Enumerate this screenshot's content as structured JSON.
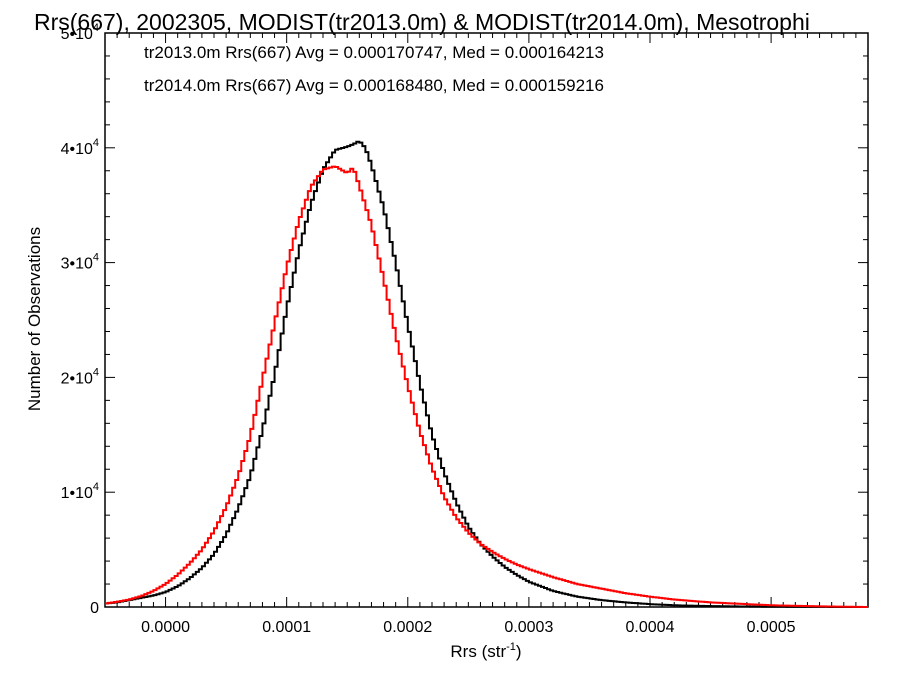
{
  "chart_data": {
    "type": "line",
    "title": "Rrs(667), 2002305, MODIST(tr2013.0m) & MODIST(tr2014.0m), Mesotrophi",
    "xlabel": "Rrs (str",
    "xlabel_sup": "-1",
    "xlabel_end": ")",
    "ylabel": "Number of Observations",
    "xlim": [
      -5e-05,
      0.00058
    ],
    "ylim": [
      0,
      50000
    ],
    "x_ticks": [
      0.0,
      0.0001,
      0.0002,
      0.0003,
      0.0004,
      0.0005
    ],
    "x_tick_labels": [
      "0.0000",
      "0.0001",
      "0.0002",
      "0.0003",
      "0.0004",
      "0.0005"
    ],
    "y_ticks": [
      0,
      10000,
      20000,
      30000,
      40000,
      50000
    ],
    "y_tick_labels": [
      {
        "base": "0",
        "exp": ""
      },
      {
        "base": "1•10",
        "exp": "4"
      },
      {
        "base": "2•10",
        "exp": "4"
      },
      {
        "base": "3•10",
        "exp": "4"
      },
      {
        "base": "4•10",
        "exp": "4"
      },
      {
        "base": "5•10",
        "exp": "4"
      }
    ],
    "legend": [
      {
        "text": "tr2013.0m Rrs(667) Avg = 0.000170747, Med = 0.000164213",
        "color": "#000000"
      },
      {
        "text": "tr2014.0m Rrs(667) Avg = 0.000168480, Med = 0.000159216",
        "color": "#ff0000"
      }
    ],
    "legend_position": "top-left",
    "grid": false,
    "series": [
      {
        "color": "#000000",
        "x": [
          -5e-05,
          -4e-05,
          -3e-05,
          -2e-05,
          -1e-05,
          0.0,
          1e-05,
          2e-05,
          3e-05,
          4e-05,
          5e-05,
          6e-05,
          7e-05,
          8e-05,
          9e-05,
          0.0001,
          0.00011,
          0.00012,
          0.00013,
          0.00014,
          0.00015,
          0.000155,
          0.00016,
          0.000165,
          0.00017,
          0.00018,
          0.00019,
          0.0002,
          0.00021,
          0.00022,
          0.00023,
          0.00024,
          0.00025,
          0.00026,
          0.00027,
          0.00028,
          0.00029,
          0.0003,
          0.00032,
          0.00034,
          0.00036,
          0.00038,
          0.0004,
          0.00042,
          0.00045,
          0.00048,
          0.0005,
          0.00053,
          0.00055,
          0.00058
        ],
        "y": [
          300,
          400,
          600,
          800,
          1000,
          1300,
          1800,
          2500,
          3400,
          4600,
          6300,
          8600,
          11400,
          15400,
          20200,
          26000,
          31000,
          35100,
          38100,
          39800,
          40100,
          40300,
          40600,
          40000,
          38500,
          34800,
          30000,
          24600,
          19500,
          15000,
          11700,
          9100,
          7000,
          5500,
          4400,
          3500,
          2800,
          2200,
          1400,
          900,
          600,
          400,
          250,
          150,
          80,
          40,
          20,
          10,
          5,
          0
        ]
      },
      {
        "color": "#ff0000",
        "x": [
          -5e-05,
          -4e-05,
          -3e-05,
          -2e-05,
          -1e-05,
          0.0,
          1e-05,
          2e-05,
          3e-05,
          4e-05,
          5e-05,
          6e-05,
          7e-05,
          8e-05,
          9e-05,
          0.0001,
          0.00011,
          0.00012,
          0.00013,
          0.00014,
          0.00015,
          0.000155,
          0.00016,
          0.00017,
          0.00018,
          0.00019,
          0.0002,
          0.00021,
          0.00022,
          0.00023,
          0.00024,
          0.00025,
          0.00026,
          0.00027,
          0.00028,
          0.00029,
          0.0003,
          0.00032,
          0.00034,
          0.00036,
          0.00038,
          0.0004,
          0.00042,
          0.00045,
          0.00048,
          0.0005,
          0.00053,
          0.00055,
          0.00058
        ],
        "y": [
          300,
          450,
          650,
          950,
          1400,
          2000,
          2800,
          3800,
          5000,
          6600,
          8700,
          11400,
          14900,
          19800,
          24700,
          29600,
          33600,
          36600,
          38100,
          38400,
          37800,
          38300,
          36700,
          33300,
          28600,
          23700,
          19300,
          15300,
          12100,
          9600,
          7800,
          6500,
          5500,
          4800,
          4200,
          3700,
          3300,
          2600,
          2000,
          1600,
          1200,
          900,
          650,
          400,
          250,
          150,
          80,
          40,
          0
        ]
      }
    ]
  }
}
